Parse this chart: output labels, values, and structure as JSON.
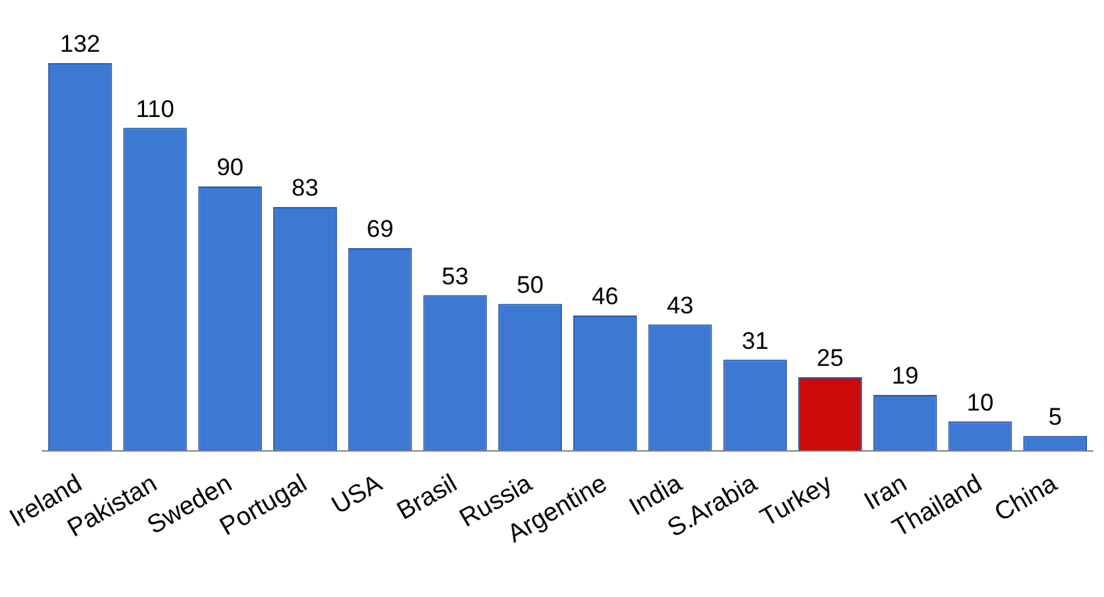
{
  "chart_data": {
    "type": "bar",
    "categories": [
      "Ireland",
      "Pakistan",
      "Sweden",
      "Portugal",
      "USA",
      "Brasil",
      "Russia",
      "Argentine",
      "India",
      "S.Arabia",
      "Turkey",
      "Iran",
      "Thailand",
      "China"
    ],
    "values": [
      132,
      110,
      90,
      83,
      69,
      53,
      50,
      46,
      43,
      31,
      25,
      19,
      10,
      5
    ],
    "colors": [
      "#3d78d3",
      "#3d78d3",
      "#3d78d3",
      "#3d78d3",
      "#3d78d3",
      "#3d78d3",
      "#3d78d3",
      "#3d78d3",
      "#3d78d3",
      "#3d78d3",
      "#cc0a0a",
      "#3d78d3",
      "#3d78d3",
      "#3d78d3"
    ],
    "data_labels": true,
    "grid": false,
    "legend": false
  }
}
